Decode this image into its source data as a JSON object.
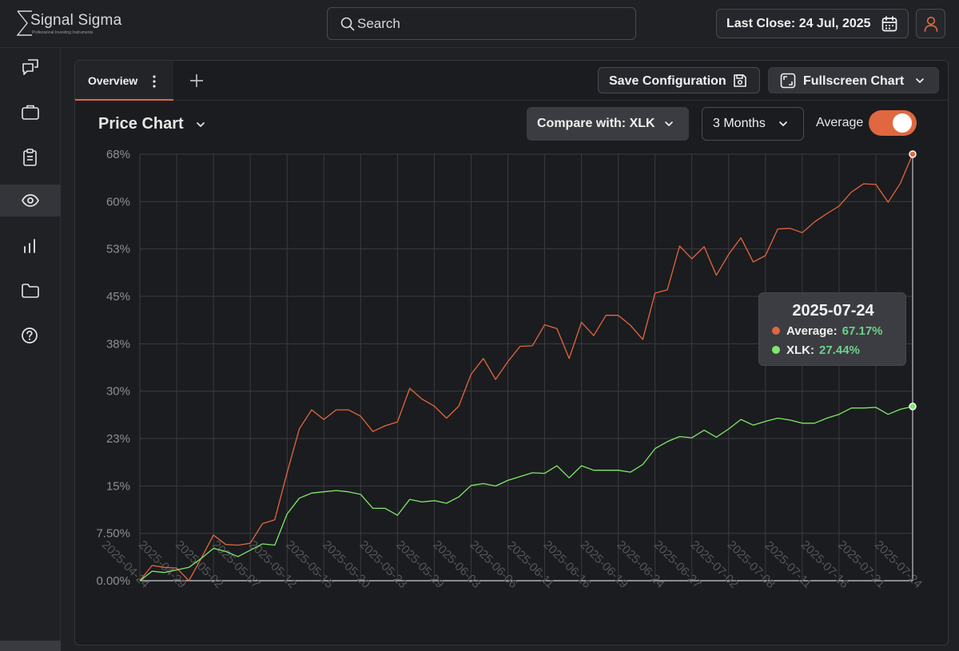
{
  "app": {
    "logo_name": "Signal Sigma",
    "logo_tagline": "Professional Investing Instruments"
  },
  "header": {
    "search_placeholder": "Search",
    "last_close": "Last Close: 24 Jul, 2025"
  },
  "sidebar": {
    "items": [
      {
        "icon": "chat-icon"
      },
      {
        "icon": "briefcase-icon"
      },
      {
        "icon": "clipboard-icon"
      },
      {
        "icon": "eye-icon",
        "active": true
      },
      {
        "icon": "bar-chart-icon"
      },
      {
        "icon": "folder-icon"
      },
      {
        "icon": "help-icon"
      }
    ]
  },
  "tabs": [
    {
      "label": "Overview",
      "active": true
    }
  ],
  "toolbar": {
    "save_label": "Save Configuration",
    "fullscreen_label": "Fullscreen Chart"
  },
  "chart_controls": {
    "title": "Price Chart",
    "compare_label": "Compare with: XLK",
    "range_label": "3 Months",
    "average_label": "Average",
    "average_on": true
  },
  "tooltip": {
    "date": "2025-07-24",
    "rows": [
      {
        "label": "Average:",
        "value": "67.17%",
        "color": "#e0673f"
      },
      {
        "label": "XLK:",
        "value": "27.44%",
        "color": "#7ee86a"
      }
    ]
  },
  "colors": {
    "accent": "#e0673f",
    "average_line": "#e0673f",
    "xlk_line": "#7ee86a",
    "positive_value": "#6fd08a"
  },
  "chart_data": {
    "type": "line",
    "y_tick_labels": [
      "0.00%",
      "7.50%",
      "15%",
      "23%",
      "30%",
      "38%",
      "45%",
      "53%",
      "60%",
      "68%"
    ],
    "ylim": [
      0,
      67.17
    ],
    "x_tick_labels": [
      "2025-04-24",
      "2025-04-29",
      "2025-05-02",
      "2025-05-07",
      "2025-05-12",
      "2025-05-15",
      "2025-05-20",
      "2025-05-23",
      "2025-05-29",
      "2025-06-03",
      "2025-06-06",
      "2025-06-11",
      "2025-06-16",
      "2025-06-19",
      "2025-06-24",
      "2025-06-27",
      "2025-07-02",
      "2025-07-08",
      "2025-07-11",
      "2025-07-16",
      "2025-07-21",
      "2025-07-24"
    ],
    "grid": true,
    "series": [
      {
        "name": "Average",
        "values": [
          0,
          2.4,
          2.1,
          2.0,
          0,
          3.5,
          7.2,
          5.7,
          5.6,
          5.9,
          9.0,
          9.6,
          17.0,
          23.9,
          26.9,
          25.4,
          26.9,
          26.9,
          25.9,
          23.5,
          24.4,
          25.0,
          30.3,
          28.6,
          27.5,
          25.6,
          27.5,
          32.5,
          35.0,
          31.7,
          34.5,
          36.9,
          37.0,
          40.3,
          39.7,
          35.0,
          40.7,
          38.6,
          41.8,
          41.8,
          40.2,
          38.0,
          45.3,
          45.8,
          52.7,
          50.7,
          52.6,
          48.1,
          51.4,
          54.0,
          50.2,
          51.2,
          55.4,
          55.5,
          54.8,
          56.5,
          57.8,
          59.0,
          61.2,
          62.5,
          62.4,
          59.6,
          62.6,
          67.17
        ]
      },
      {
        "name": "XLK",
        "values": [
          0,
          1.5,
          1.3,
          1.7,
          2.1,
          3.5,
          5.1,
          4.6,
          3.8,
          4.8,
          5.8,
          5.6,
          10.5,
          13.0,
          13.8,
          14.0,
          14.2,
          14.0,
          13.6,
          11.4,
          11.4,
          10.3,
          12.8,
          12.4,
          12.6,
          12.2,
          13.2,
          15.0,
          15.3,
          14.9,
          15.8,
          16.4,
          17.0,
          16.9,
          18.1,
          16.2,
          18.1,
          17.4,
          17.4,
          17.4,
          17.1,
          18.3,
          20.8,
          21.9,
          22.7,
          22.5,
          23.7,
          22.6,
          23.9,
          25.4,
          24.5,
          25.1,
          25.6,
          25.3,
          24.8,
          24.8,
          25.6,
          26.2,
          27.2,
          27.2,
          27.3,
          26.2,
          27.0,
          27.44
        ]
      }
    ]
  }
}
